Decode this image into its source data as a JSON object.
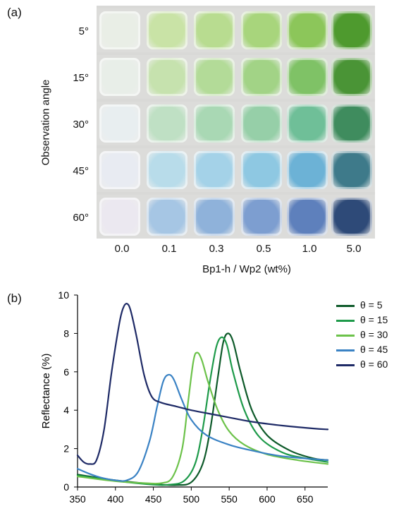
{
  "panel_a": {
    "label": "(a)",
    "y_title": "Observation angle",
    "x_title": "Bp1-h / Wp2 (wt%)",
    "angles": [
      "5°",
      "15°",
      "30°",
      "45°",
      "60°"
    ],
    "concentrations": [
      "0.0",
      "0.1",
      "0.3",
      "0.5",
      "1.0",
      "5.0"
    ],
    "sample_colors": [
      [
        "#e9eee6",
        "#c9e3a6",
        "#b8dc90",
        "#a8d57c",
        "#8cc65a",
        "#4e9a2e"
      ],
      [
        "#e8eee8",
        "#c6e2ae",
        "#b3db98",
        "#a2d386",
        "#7fc266",
        "#4a9436"
      ],
      [
        "#e8eef0",
        "#bfe0c4",
        "#a9d8b4",
        "#96cfa8",
        "#6fbf98",
        "#3f8c5e"
      ],
      [
        "#e8ebf2",
        "#b8dcea",
        "#a4d2e8",
        "#8ec8e2",
        "#6cb2d6",
        "#3e7a8a"
      ],
      [
        "#ebe8f0",
        "#a6c6e4",
        "#8fb2da",
        "#7d9ed0",
        "#5e80bc",
        "#2e4a78"
      ]
    ]
  },
  "panel_b": {
    "label": "(b)"
  },
  "chart_data": {
    "type": "line",
    "xlabel": "Wavelength (nm)",
    "ylabel": "Reflectance (%)",
    "xlim": [
      350,
      680
    ],
    "ylim": [
      0,
      10
    ],
    "x_ticks": [
      "350",
      "400",
      "450",
      "500",
      "550",
      "600",
      "650"
    ],
    "y_ticks": [
      "0",
      "2",
      "4",
      "6",
      "8",
      "10"
    ],
    "legend_position": "right",
    "series": [
      {
        "name": "θ =  5",
        "theta": "5",
        "color": "#0e5a2a",
        "points": [
          [
            350,
            0.65
          ],
          [
            400,
            0.35
          ],
          [
            450,
            0.15
          ],
          [
            480,
            0.1
          ],
          [
            500,
            0.25
          ],
          [
            515,
            1.2
          ],
          [
            525,
            3.0
          ],
          [
            535,
            5.7
          ],
          [
            542,
            7.5
          ],
          [
            548,
            8.0
          ],
          [
            555,
            7.6
          ],
          [
            565,
            6.0
          ],
          [
            580,
            4.0
          ],
          [
            600,
            2.7
          ],
          [
            630,
            1.9
          ],
          [
            660,
            1.5
          ],
          [
            680,
            1.4
          ]
        ]
      },
      {
        "name": "θ = 15",
        "theta": "15",
        "color": "#1e9a4a",
        "points": [
          [
            350,
            0.6
          ],
          [
            400,
            0.32
          ],
          [
            450,
            0.12
          ],
          [
            470,
            0.12
          ],
          [
            490,
            0.3
          ],
          [
            505,
            1.2
          ],
          [
            515,
            3.0
          ],
          [
            525,
            5.6
          ],
          [
            533,
            7.3
          ],
          [
            540,
            7.8
          ],
          [
            547,
            7.4
          ],
          [
            555,
            6.0
          ],
          [
            570,
            4.0
          ],
          [
            590,
            2.6
          ],
          [
            620,
            1.8
          ],
          [
            650,
            1.5
          ],
          [
            680,
            1.3
          ]
        ]
      },
      {
        "name": "θ = 30",
        "theta": "30",
        "color": "#6cc24a",
        "points": [
          [
            350,
            0.55
          ],
          [
            400,
            0.3
          ],
          [
            440,
            0.2
          ],
          [
            460,
            0.2
          ],
          [
            475,
            0.5
          ],
          [
            488,
            2.0
          ],
          [
            496,
            4.5
          ],
          [
            503,
            6.6
          ],
          [
            508,
            7.0
          ],
          [
            514,
            6.6
          ],
          [
            522,
            5.5
          ],
          [
            535,
            4.0
          ],
          [
            550,
            2.9
          ],
          [
            570,
            2.2
          ],
          [
            600,
            1.7
          ],
          [
            640,
            1.4
          ],
          [
            680,
            1.2
          ]
        ]
      },
      {
        "name": "θ = 45",
        "theta": "45",
        "color": "#3a82c4",
        "points": [
          [
            350,
            0.95
          ],
          [
            365,
            0.7
          ],
          [
            380,
            0.5
          ],
          [
            400,
            0.35
          ],
          [
            415,
            0.35
          ],
          [
            430,
            0.8
          ],
          [
            445,
            2.4
          ],
          [
            455,
            4.2
          ],
          [
            463,
            5.5
          ],
          [
            470,
            5.85
          ],
          [
            477,
            5.6
          ],
          [
            487,
            4.6
          ],
          [
            500,
            3.5
          ],
          [
            520,
            2.7
          ],
          [
            550,
            2.2
          ],
          [
            580,
            1.9
          ],
          [
            620,
            1.6
          ],
          [
            680,
            1.4
          ]
        ]
      },
      {
        "name": "θ = 60",
        "theta": "60",
        "color": "#1e2a66",
        "points": [
          [
            350,
            1.65
          ],
          [
            358,
            1.3
          ],
          [
            366,
            1.2
          ],
          [
            375,
            1.4
          ],
          [
            385,
            3.0
          ],
          [
            395,
            6.0
          ],
          [
            405,
            8.5
          ],
          [
            410,
            9.3
          ],
          [
            415,
            9.55
          ],
          [
            420,
            9.2
          ],
          [
            428,
            7.8
          ],
          [
            438,
            5.8
          ],
          [
            448,
            4.7
          ],
          [
            460,
            4.4
          ],
          [
            480,
            4.2
          ],
          [
            500,
            4.0
          ],
          [
            540,
            3.7
          ],
          [
            580,
            3.4
          ],
          [
            620,
            3.2
          ],
          [
            660,
            3.05
          ],
          [
            680,
            3.0
          ]
        ]
      }
    ]
  }
}
